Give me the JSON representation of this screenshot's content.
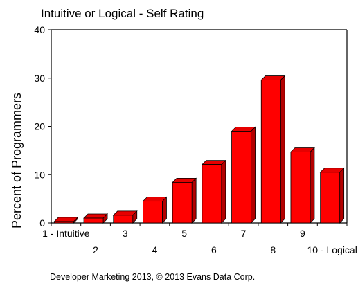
{
  "chart_data": {
    "type": "bar",
    "title": "Intuitive or Logical - Self Rating",
    "xlabel": "",
    "ylabel": "Percent of Programmers",
    "ylim": [
      0,
      40
    ],
    "y_ticks": [
      "0",
      "10",
      "20",
      "30",
      "40"
    ],
    "categories": [
      "1 - Intuitive",
      "2",
      "3",
      "4",
      "5",
      "6",
      "7",
      "8",
      "9",
      "10 - Logical"
    ],
    "values": [
      0.3,
      1.0,
      1.6,
      4.5,
      8.4,
      12.1,
      19.0,
      29.6,
      14.7,
      10.5
    ],
    "grid": false,
    "legend": "none",
    "bar_color": "#ff0000",
    "bar_side_color": "#b30000",
    "bar_top_color": "#e60000"
  },
  "footer": "Developer Marketing 2013, © 2013 Evans Data Corp."
}
